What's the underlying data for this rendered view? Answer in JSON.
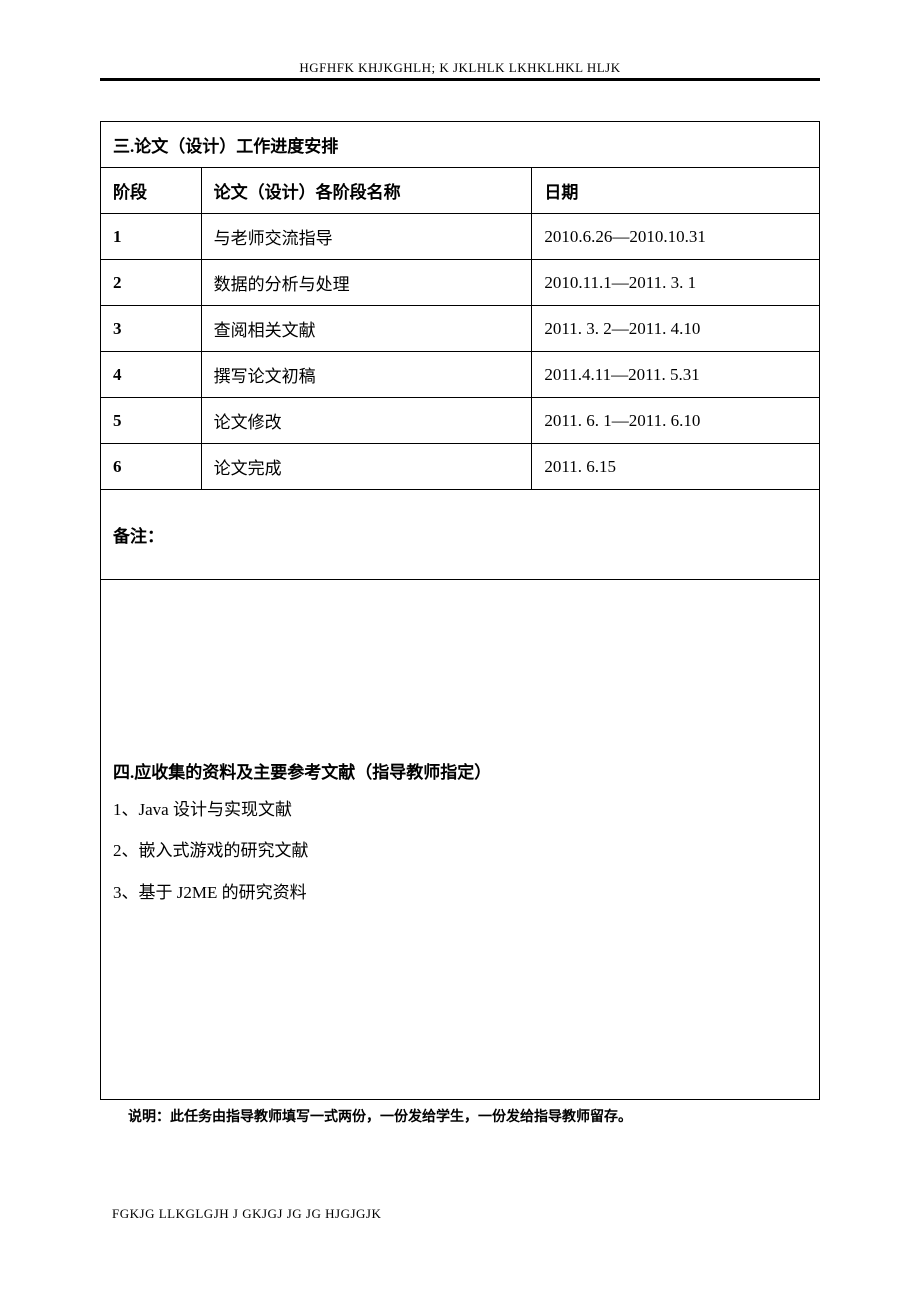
{
  "header_text": "HGFHFK KHJKGHLH; K JKLHLK LKHKLHKL HLJK",
  "section3": {
    "title": "三.论文（设计）工作进度安排",
    "columns": {
      "stage": "阶段",
      "name": "论文（设计）各阶段名称",
      "date": "日期"
    },
    "rows": [
      {
        "num": "1",
        "name": "与老师交流指导",
        "date": "2010.6.26—2010.10.31"
      },
      {
        "num": "2",
        "name": "数据的分析与处理",
        "date": "2010.11.1—2011. 3. 1"
      },
      {
        "num": "3",
        "name": "查阅相关文献",
        "date": "2011. 3. 2—2011. 4.10"
      },
      {
        "num": "4",
        "name": "撰写论文初稿",
        "date": "2011.4.11—2011. 5.31"
      },
      {
        "num": "5",
        "name": "论文修改",
        "date": "2011. 6. 1—2011. 6.10"
      },
      {
        "num": "6",
        "name": "论文完成",
        "date": "2011. 6.15"
      }
    ],
    "notes_label": "备注："
  },
  "section4": {
    "title": "四.应收集的资料及主要参考文献（指导教师指定）",
    "items": [
      "1、Java 设计与实现文献",
      "2、嵌入式游戏的研究文献",
      "3、基于 J2ME 的研究资料"
    ]
  },
  "footer_note": "说明：此任务由指导教师填写一式两份，一份发给学生，一份发给指导教师留存。",
  "footer_text": "FGKJG LLKGLGJH J GKJGJ JG JG HJGJGJK",
  "colors": {
    "text": "#000000",
    "background": "#ffffff",
    "border": "#000000"
  },
  "fonts": {
    "body_size": 17,
    "header_size": 13,
    "footer_size": 13
  }
}
